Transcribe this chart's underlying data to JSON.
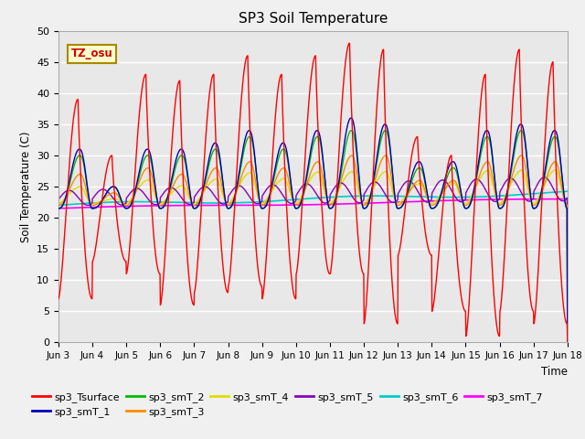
{
  "title": "SP3 Soil Temperature",
  "ylabel": "Soil Temperature (C)",
  "xlabel": "Time",
  "tz_label": "TZ_osu",
  "ylim": [
    0,
    50
  ],
  "x_tick_labels": [
    "Jun 3",
    "Jun 4",
    "Jun 5",
    "Jun 6",
    "Jun 7",
    "Jun 8",
    "Jun 9",
    "Jun 10",
    "Jun 11",
    "Jun 12",
    "Jun 13",
    "Jun 14",
    "Jun 15",
    "Jun 16",
    "Jun 17",
    "Jun 18"
  ],
  "bg_color": "#e8e8e8",
  "fig_bg_color": "#f0f0f0",
  "series_colors": {
    "sp3_Tsurface": "#ff0000",
    "sp3_smT_1": "#0000bb",
    "sp3_smT_2": "#00bb00",
    "sp3_smT_3": "#ff8800",
    "sp3_smT_4": "#dddd00",
    "sp3_smT_5": "#8800bb",
    "sp3_smT_6": "#00cccc",
    "sp3_smT_7": "#ff00ff"
  },
  "surface_max": [
    39,
    30,
    43,
    42,
    43,
    46,
    43,
    46,
    48,
    47,
    33,
    30,
    43,
    47,
    45,
    10
  ],
  "surface_min": [
    7,
    13,
    11,
    6,
    8,
    9,
    7,
    11,
    11,
    3,
    14,
    5,
    1,
    5,
    3,
    10
  ],
  "smt1_max": [
    31,
    25,
    31,
    31,
    32,
    34,
    32,
    34,
    36,
    35,
    29,
    29,
    34,
    35,
    34,
    22
  ],
  "smt2_max": [
    30,
    25,
    30,
    30,
    31,
    33,
    31,
    33,
    34,
    34,
    28,
    28,
    33,
    34,
    33,
    22
  ],
  "smt3_max": [
    27,
    24,
    28,
    27,
    28,
    29,
    28,
    29,
    30,
    30,
    26,
    26,
    29,
    30,
    29,
    23
  ],
  "smt4_max": [
    25,
    23,
    26,
    25,
    26,
    27,
    26,
    27,
    27,
    27,
    25,
    25,
    27,
    27,
    27,
    24
  ]
}
